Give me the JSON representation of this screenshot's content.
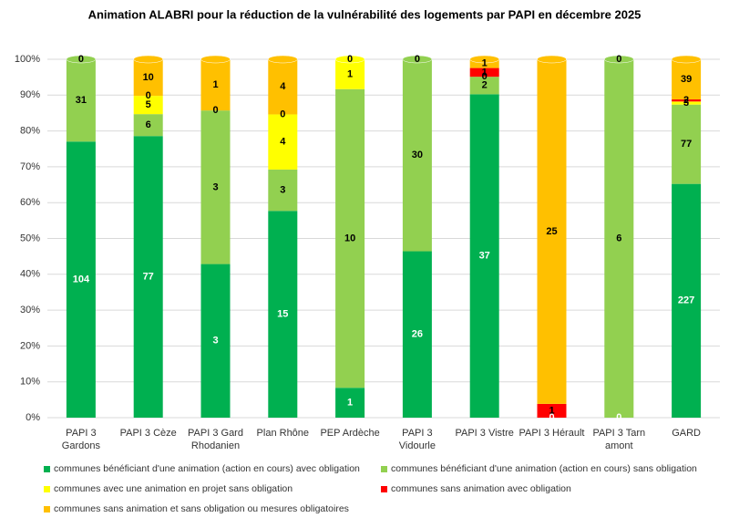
{
  "chart_data": {
    "type": "bar",
    "stack": "percent",
    "title": "Animation ALABRI pour la réduction de la vulnérabilité des logements par PAPI en décembre 2025",
    "categories": [
      "PAPI 3 Gardons",
      "PAPI 3 Cèze",
      "PAPI 3 Gard Rhodanien",
      "Plan Rhône",
      "PEP Ardèche",
      "PAPI 3 Vidourle",
      "PAPI 3 Vistre",
      "PAPI 3 Hérault",
      "PAPI 3 Tarn amont",
      "GARD"
    ],
    "series": [
      {
        "name": "communes bénéficiant d'une animation (action en cours) avec obligation",
        "color": "#00b050",
        "label_color": "#ffffff",
        "values": [
          104,
          77,
          3,
          15,
          1,
          26,
          37,
          0,
          0,
          227
        ]
      },
      {
        "name": "communes bénéficiant d'une animation (action en cours) sans obligation",
        "color": "#92d050",
        "label_color": "#000000",
        "values": [
          31,
          6,
          3,
          3,
          10,
          30,
          2,
          null,
          6,
          77
        ]
      },
      {
        "name": "communes avec une animation en projet  sans obligation",
        "color": "#ffff00",
        "label_color": "#000000",
        "values": [
          null,
          5,
          0,
          4,
          1,
          null,
          0,
          null,
          null,
          3
        ]
      },
      {
        "name": "communes sans animation avec obligation",
        "color": "#ff0000",
        "label_color": "#000000",
        "values": [
          null,
          0,
          null,
          0,
          null,
          null,
          1,
          1,
          null,
          2
        ]
      },
      {
        "name": "communes sans animation et sans obligation ou mesures obligatoires",
        "color": "#ffc000",
        "label_color": "#000000",
        "values": [
          0,
          10,
          1,
          4,
          0,
          0,
          1,
          25,
          0,
          39
        ]
      }
    ],
    "ylim": [
      0,
      100
    ],
    "yticks": [
      {
        "value": 0,
        "label": "0%"
      },
      {
        "value": 10,
        "label": "10%"
      },
      {
        "value": 20,
        "label": "20%"
      },
      {
        "value": 30,
        "label": "30%"
      },
      {
        "value": 40,
        "label": "40%"
      },
      {
        "value": 50,
        "label": "50%"
      },
      {
        "value": 60,
        "label": "60%"
      },
      {
        "value": 70,
        "label": "70%"
      },
      {
        "value": 80,
        "label": "80%"
      },
      {
        "value": 90,
        "label": "90%"
      },
      {
        "value": 100,
        "label": "100%"
      }
    ],
    "grid": true
  }
}
